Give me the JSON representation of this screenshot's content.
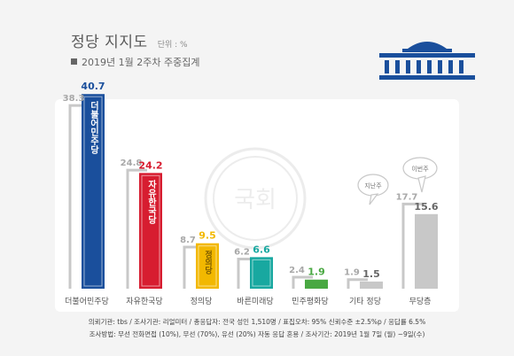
{
  "header": {
    "title": "정당 지지도",
    "unit": "단위 : %",
    "subtitle": "2019년 1월 2주차 주중집계"
  },
  "colors": {
    "previous": "#c8c8c8",
    "label_previous": "#a8a8a8",
    "parties": [
      "#1a4f9c",
      "#d71d30",
      "#f2b800",
      "#18a8a0",
      "#49a842",
      "#aaaaaa",
      "#aaaaaa"
    ]
  },
  "chart_data": {
    "type": "bar",
    "categories": [
      "더불어민주당",
      "자유한국당",
      "정의당",
      "바른미래당",
      "민주평화당",
      "기타 정당",
      "무당층"
    ],
    "series": [
      {
        "values": [
          38.3,
          24.8,
          8.7,
          6.2,
          2.4,
          1.9,
          17.7
        ]
      },
      {
        "values": [
          40.7,
          24.2,
          9.5,
          6.6,
          1.9,
          1.5,
          15.6
        ]
      }
    ],
    "bar_texts": [
      "더불어민주당",
      "자유한국당",
      "정의당",
      "",
      "",
      "",
      ""
    ],
    "bubbles": [
      "지난주",
      "이번주"
    ],
    "watermark": "국회",
    "ylim": [
      0,
      45
    ]
  },
  "footer": {
    "line1": "의뢰기관: tbs / 조사기관: 리얼미터 / 총응답자: 전국 성인 1,510명 / 표집오차: 95% 신뢰수준 ±2.5%p / 응답률 6.5%",
    "line2": "조사방법: 무선 전화면접 (10%), 무선 (70%), 유선 (20%) 자동 응답 혼용 / 조사기간: 2019년 1월 7일 (월) ~9일(수)"
  }
}
